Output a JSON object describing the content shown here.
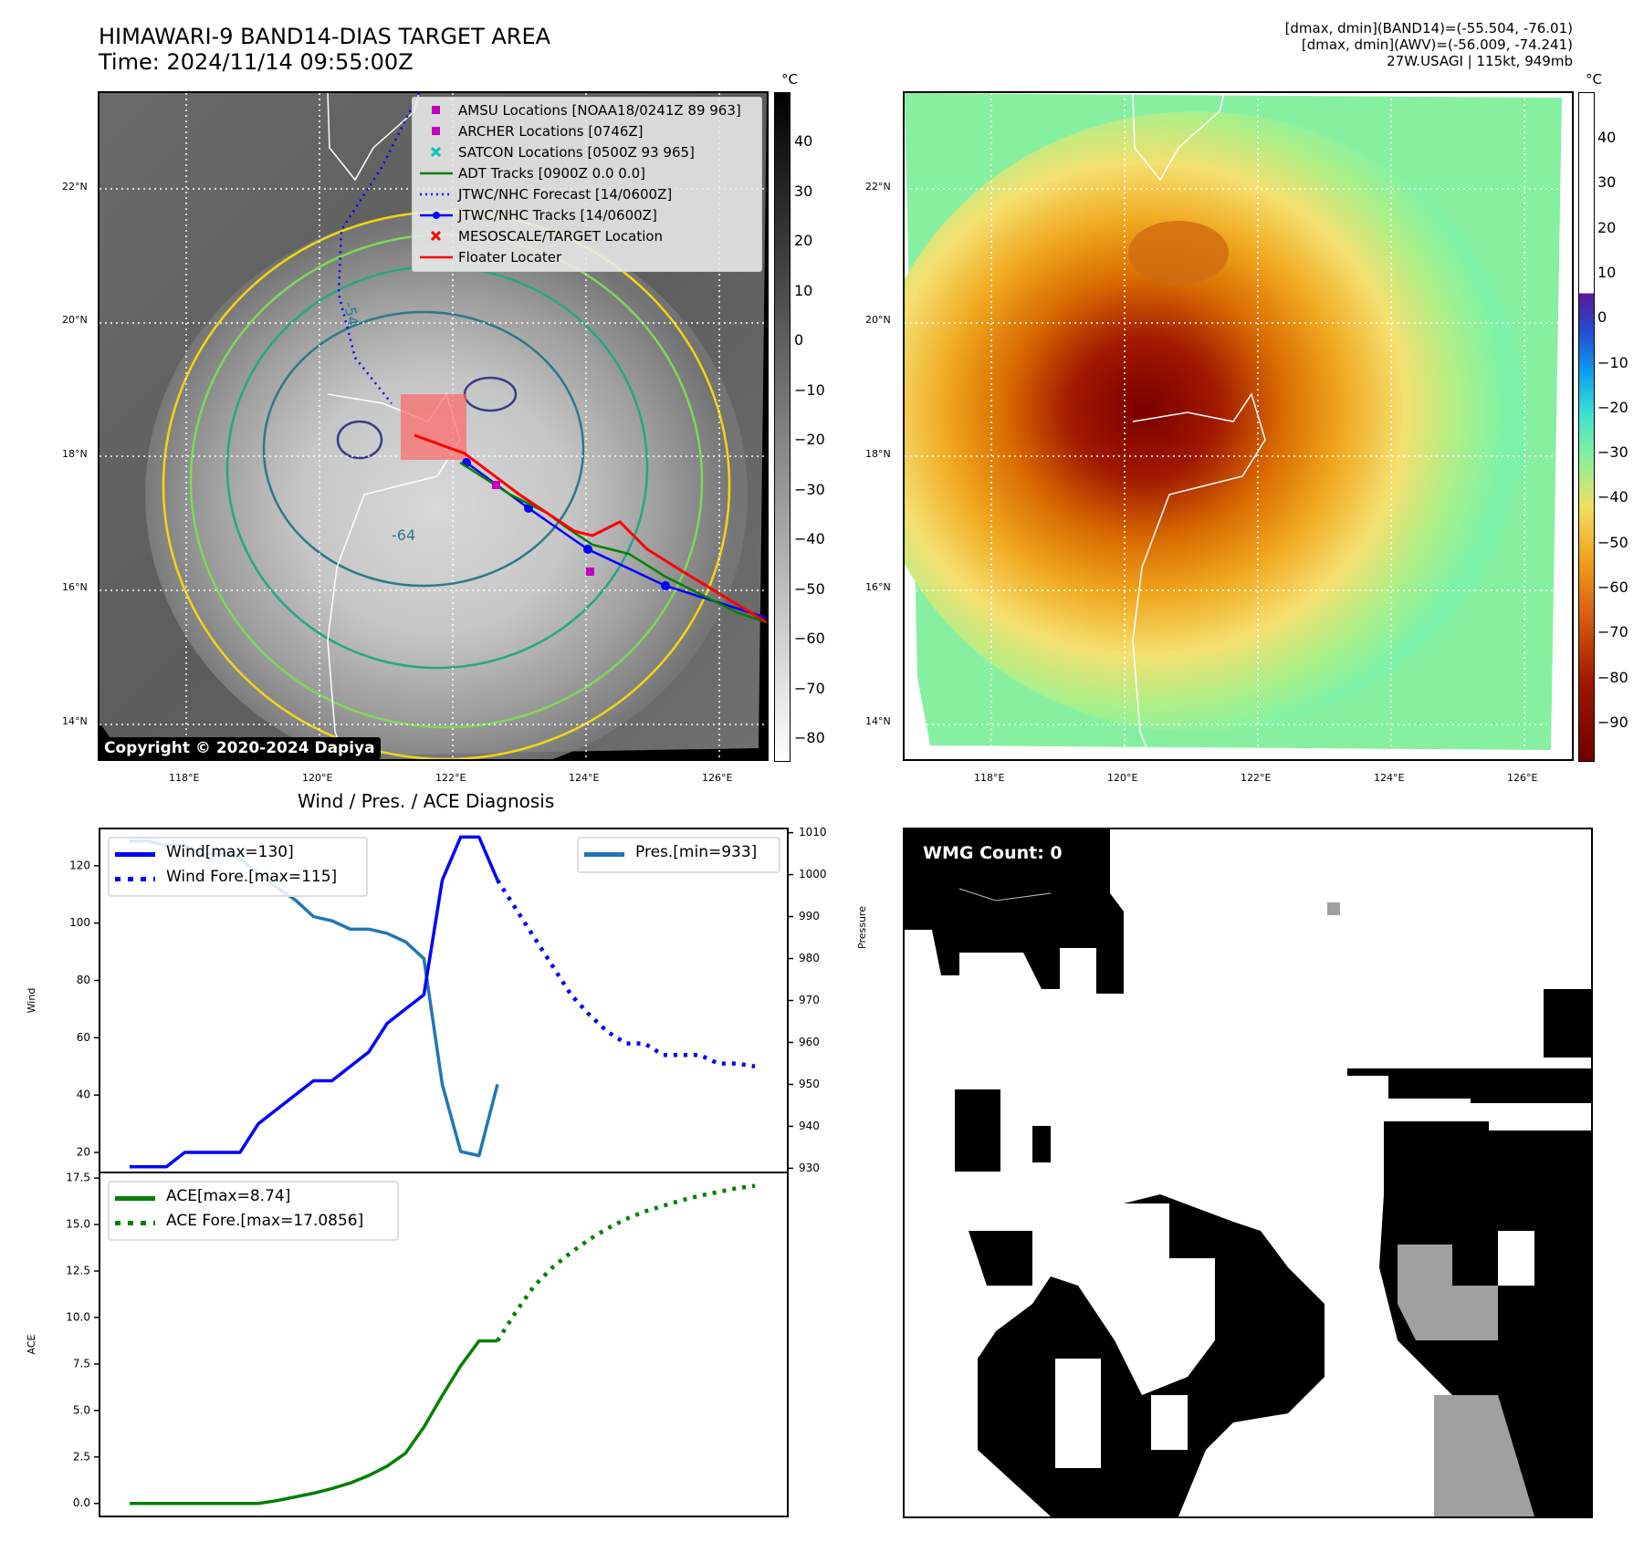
{
  "header": {
    "title_line1": "HIMAWARI-9 BAND14-DIAS TARGET AREA",
    "title_line2": "Time: 2024/11/14 09:55:00Z",
    "meta_line1": "[dmax, dmin](BAND14)=(-55.504, -76.01)",
    "meta_line2": "[dmax, dmin](AWV)=(-56.009, -74.241)",
    "meta_line3": "27W.USAGI | 115kt, 949mb"
  },
  "map_left": {
    "lat_ticks": [
      "22°N",
      "20°N",
      "18°N",
      "16°N",
      "14°N"
    ],
    "lon_ticks": [
      "118°E",
      "120°E",
      "122°E",
      "124°E",
      "126°E"
    ],
    "copyright": "Copyright © 2020-2024 Dapiya",
    "contour_labels": [
      "-54",
      "-64"
    ],
    "legend": [
      {
        "label": "AMSU Locations [NOAA18/0241Z 89 963]",
        "symbol": "square",
        "color": "#c000c0"
      },
      {
        "label": "ARCHER Locations [0746Z]",
        "symbol": "square",
        "color": "#c000c0"
      },
      {
        "label": "SATCON Locations [0500Z 93 965]",
        "symbol": "x",
        "color": "#00c0c0"
      },
      {
        "label": "ADT Tracks [0900Z 0.0 0.0]",
        "symbol": "line",
        "color": "#008000"
      },
      {
        "label": "JTWC/NHC Forecast [14/0600Z]",
        "symbol": "dotted",
        "color": "#0000ff"
      },
      {
        "label": "JTWC/NHC Tracks [14/0600Z]",
        "symbol": "line-dot",
        "color": "#0000ff"
      },
      {
        "label": "MESOSCALE/TARGET Location",
        "symbol": "x",
        "color": "#ff0000"
      },
      {
        "label": "Floater Locater",
        "symbol": "line",
        "color": "#ff0000"
      }
    ],
    "colorbar": {
      "unit": "°C",
      "ticks": [
        "40",
        "30",
        "20",
        "10",
        "0",
        "−10",
        "−20",
        "−30",
        "−40",
        "−50",
        "−60",
        "−70",
        "−80"
      ]
    }
  },
  "map_right": {
    "lat_ticks": [
      "22°N",
      "20°N",
      "18°N",
      "16°N",
      "14°N"
    ],
    "lon_ticks": [
      "118°E",
      "120°E",
      "122°E",
      "124°E",
      "126°E"
    ],
    "colorbar": {
      "unit": "°C",
      "ticks": [
        "40",
        "30",
        "20",
        "10",
        "0",
        "−10",
        "−20",
        "−30",
        "−40",
        "−50",
        "−60",
        "−70",
        "−80",
        "−90"
      ]
    }
  },
  "wmg": {
    "badge": "WMG Count: 0"
  },
  "chart_data": [
    {
      "type": "line",
      "title": "Wind / Pres. / ACE Diagnosis",
      "ylabel": "Wind",
      "y2label": "Pressure",
      "ylim": [
        13,
        133
      ],
      "y2lim": [
        929,
        1011
      ],
      "yticks": [
        "20",
        "40",
        "60",
        "80",
        "100",
        "120"
      ],
      "y2ticks": [
        "930",
        "940",
        "950",
        "960",
        "970",
        "980",
        "990",
        "1000",
        "1010"
      ],
      "x_count": 35,
      "series": [
        {
          "name": "Wind[max=130]",
          "axis": "left",
          "style": "solid",
          "color": "#0000ff",
          "x": [
            0,
            1,
            2,
            3,
            4,
            5,
            6,
            7,
            8,
            9,
            10,
            11,
            12,
            13,
            14,
            15,
            16,
            17
          ],
          "values": [
            15,
            15,
            15,
            20,
            20,
            20,
            20,
            30,
            35,
            40,
            45,
            45,
            50,
            55,
            65,
            70,
            75,
            115
          ]
        },
        {
          "name": "Wind[max=130] (peak)",
          "axis": "left",
          "style": "solid",
          "color": "#0000ff",
          "x": [
            17,
            18,
            19,
            20
          ],
          "values": [
            115,
            130,
            130,
            115
          ]
        },
        {
          "name": "Wind Fore.[max=115]",
          "axis": "left",
          "style": "dotted",
          "color": "#0000ff",
          "x": [
            20,
            21,
            22,
            23,
            24,
            25,
            26,
            27,
            28,
            29,
            30,
            31,
            32,
            33,
            34
          ],
          "values": [
            115,
            105,
            95,
            85,
            75,
            68,
            62,
            58,
            58,
            54,
            54,
            54,
            51,
            51,
            50
          ]
        },
        {
          "name": "Pres.[min=933]",
          "axis": "right",
          "style": "solid",
          "color": "#1f77b4",
          "x": [
            0,
            1,
            2,
            3,
            4,
            5,
            6,
            7,
            8,
            9,
            10,
            11,
            12,
            13,
            14,
            15,
            16,
            17,
            18,
            19,
            20
          ],
          "values": [
            1008,
            1008,
            1007,
            1007,
            1005,
            1005,
            1004,
            1000,
            997,
            994,
            990,
            989,
            987,
            987,
            986,
            984,
            980,
            950,
            934,
            933,
            950
          ]
        }
      ]
    },
    {
      "type": "line",
      "ylabel": "ACE",
      "ylim": [
        -0.7,
        17.8
      ],
      "yticks": [
        "0.0",
        "2.5",
        "5.0",
        "7.5",
        "10.0",
        "12.5",
        "15.0",
        "17.5"
      ],
      "x_count": 35,
      "series": [
        {
          "name": "ACE[max=8.74]",
          "style": "solid",
          "color": "#008000",
          "x": [
            0,
            1,
            2,
            3,
            4,
            5,
            6,
            7,
            8,
            9,
            10,
            11,
            12,
            13,
            14,
            15,
            16,
            17,
            18,
            19,
            20
          ],
          "values": [
            0,
            0,
            0,
            0,
            0,
            0,
            0,
            0,
            0.15,
            0.35,
            0.55,
            0.8,
            1.1,
            1.5,
            2.0,
            2.7,
            4.1,
            5.8,
            7.4,
            8.74,
            8.74
          ]
        },
        {
          "name": "ACE Fore.[max=17.0856]",
          "style": "dotted",
          "color": "#008000",
          "x": [
            20,
            21,
            22,
            23,
            24,
            25,
            26,
            27,
            28,
            29,
            30,
            31,
            32,
            33,
            34
          ],
          "values": [
            8.74,
            10.3,
            11.7,
            12.7,
            13.5,
            14.2,
            14.8,
            15.3,
            15.7,
            16.0,
            16.3,
            16.55,
            16.75,
            16.95,
            17.0856
          ]
        }
      ]
    }
  ]
}
